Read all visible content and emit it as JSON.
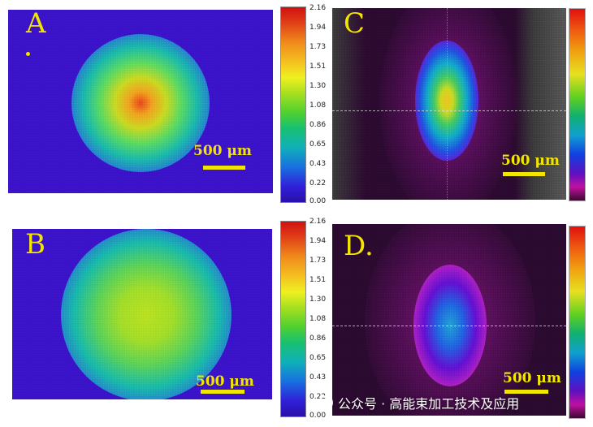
{
  "panels": {
    "a": {
      "label": "A",
      "scale": "500 μm"
    },
    "b": {
      "label": "B",
      "scale": "500 μm"
    },
    "c": {
      "label": "C",
      "scale": "500 μm"
    },
    "d": {
      "label": "D.",
      "scale": "500 μm"
    }
  },
  "colorbar_ticks": [
    "2.16",
    "1.94",
    "1.73",
    "1.51",
    "1.30",
    "1.08",
    "0.86",
    "0.65",
    "0.43",
    "0.22",
    "0.00"
  ],
  "watermark": "公众号 · 高能束加工技术及应用",
  "colors": {
    "panel_bg_ab": "#3a12c8",
    "panel_bg_cd": "#2a0a2e",
    "label": "#f2e500"
  }
}
